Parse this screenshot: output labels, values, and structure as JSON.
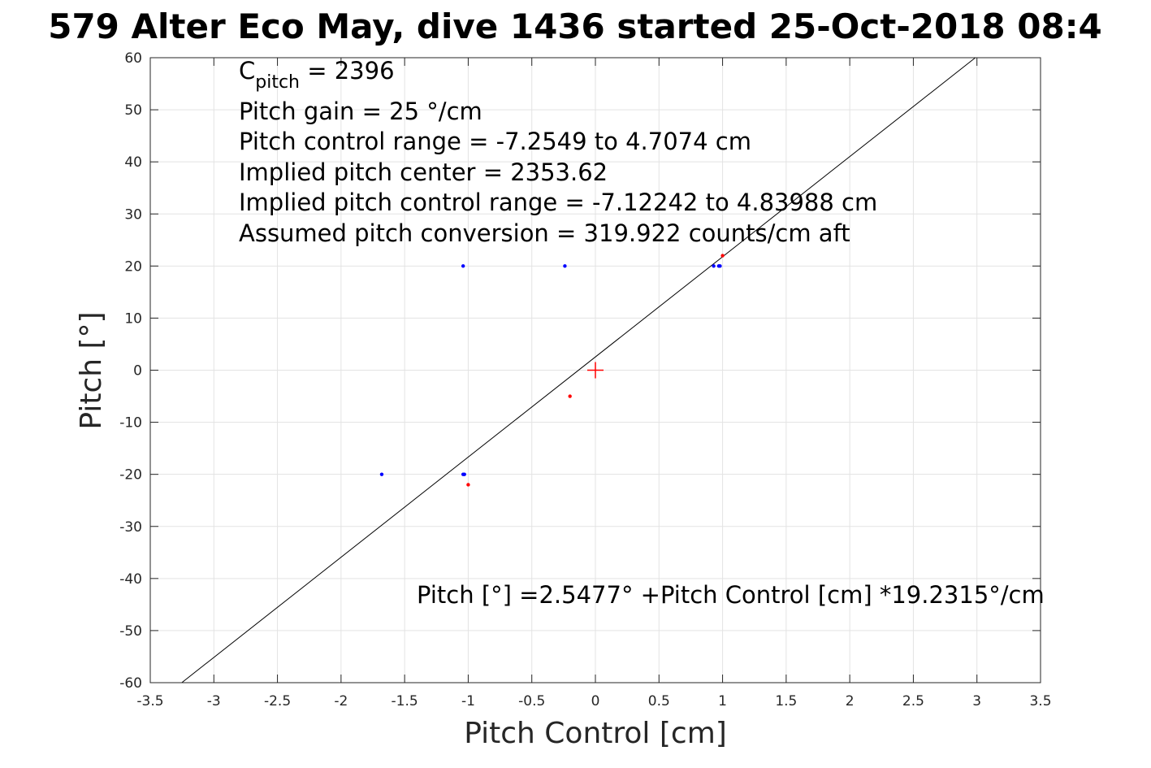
{
  "chart_data": {
    "type": "scatter",
    "title": "579 Alter Eco May, dive 1436 started 25-Oct-2018 08:4",
    "xlabel": "Pitch Control [cm]",
    "ylabel": "Pitch [°]",
    "xlim": [
      -3.5,
      3.5
    ],
    "ylim": [
      -60,
      60
    ],
    "xticks": [
      -3.5,
      -3,
      -2.5,
      -2,
      -1.5,
      -1,
      -0.5,
      0,
      0.5,
      1,
      1.5,
      2,
      2.5,
      3,
      3.5
    ],
    "yticks": [
      -60,
      -50,
      -40,
      -30,
      -20,
      -10,
      0,
      10,
      20,
      30,
      40,
      50,
      60
    ],
    "grid": true,
    "series": [
      {
        "color": "#0000ff",
        "points": [
          {
            "x": -1.04,
            "y": 20
          },
          {
            "x": -0.24,
            "y": 20
          },
          {
            "x": 0.93,
            "y": 20
          },
          {
            "x": 0.97,
            "y": 20
          },
          {
            "x": 0.98,
            "y": 20
          },
          {
            "x": -1.68,
            "y": -20
          },
          {
            "x": -1.04,
            "y": -20
          },
          {
            "x": -1.03,
            "y": -20
          }
        ]
      },
      {
        "color": "#ff0000",
        "points": [
          {
            "x": 1.0,
            "y": 22
          },
          {
            "x": -0.2,
            "y": -5
          },
          {
            "x": -1.0,
            "y": -22
          }
        ]
      }
    ],
    "fit_line": {
      "intercept": 2.5477,
      "slope": 19.2315,
      "color": "#000000"
    },
    "center_marker": {
      "x": 0,
      "y": 0,
      "color": "#ff0000"
    },
    "annotation": {
      "cpitch_base": "C",
      "cpitch_sub": "pitch",
      "cpitch_value": " = 2396",
      "lines": [
        "Pitch gain = 25 °/cm",
        "Pitch control range = -7.2549 to 4.7074 cm",
        "Implied pitch center = 2353.62",
        "Implied pitch control range = -7.12242 to 4.83988 cm",
        "Assumed pitch conversion = 319.922 counts/cm aft"
      ]
    },
    "equation": "Pitch [°] =2.5477° +Pitch Control [cm] *19.2315°/cm"
  }
}
